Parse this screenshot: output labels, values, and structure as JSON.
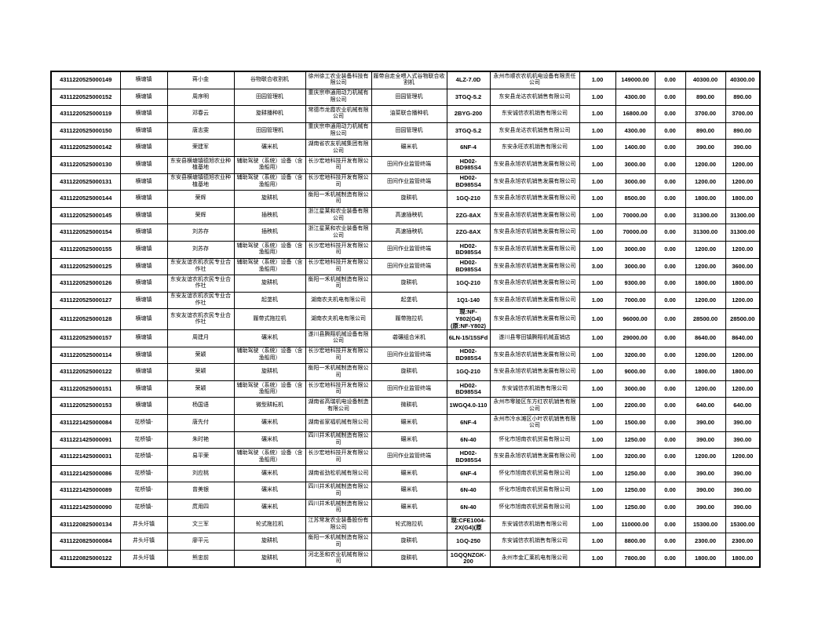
{
  "colors": {
    "page_background": "#ffffff",
    "grid_line": "#000000",
    "text": "#000000"
  },
  "table": {
    "rows": [
      [
        "4311220525000149",
        "横塘镇",
        "蒋小金",
        "谷物联合收割机",
        "徐州徐工农业装备科技有限公司",
        "履带自走全喂入式谷物联合收割机",
        "4LZ-7.0D",
        "永州市顺农农机机电设备有限责任公司",
        "1.00",
        "149000.00",
        "0.00",
        "40300.00",
        "40300.00"
      ],
      [
        "4311220525000152",
        "横塘镇",
        "周序明",
        "田园管理机",
        "重庆宗申通用动力机械有限公司",
        "田园管理机",
        "3TGQ-5.2",
        "东安县龙达农机销售有限公司",
        "1.00",
        "4300.00",
        "0.00",
        "890.00",
        "890.00"
      ],
      [
        "4311220525000119",
        "横塘镇",
        "邓春云",
        "旋耕播种机",
        "常德市龙霞农业机械有限公司",
        "油菜联合播种机",
        "2BYG-200",
        "东安诚信农机销售有限公司",
        "1.00",
        "16800.00",
        "0.00",
        "3700.00",
        "3700.00"
      ],
      [
        "4311220525000150",
        "横塘镇",
        "唐志雯",
        "田园管理机",
        "重庆宗申通用动力机械有限公司",
        "田园管理机",
        "3TGQ-5.2",
        "东安县龙达农机销售有限公司",
        "1.00",
        "4300.00",
        "0.00",
        "890.00",
        "890.00"
      ],
      [
        "4311220525000142",
        "横塘镇",
        "荣建军",
        "碾米机",
        "湖南省农友机械集团有限公司",
        "碾米机",
        "6NF-4",
        "东安永旺农机销售有限公司",
        "1.00",
        "1400.00",
        "0.00",
        "390.00",
        "390.00"
      ],
      [
        "4311220525000130",
        "横塘镇",
        "东安县横塘镇德旭农业种植基地",
        "辅助驾驶（系统）设备（含渔船用）",
        "长沙宏地科技开发有限公司",
        "田间作业监管终端",
        "HD02-BD985S4",
        "东安县永旭农机销售发展有限公司",
        "1.00",
        "3000.00",
        "0.00",
        "1200.00",
        "1200.00"
      ],
      [
        "4311220525000131",
        "横塘镇",
        "东安县横塘镇德旭农业种植基地",
        "辅助驾驶（系统）设备（含渔船用）",
        "长沙宏地科技开发有限公司",
        "田间作业监管终端",
        "HD02-BD985S4",
        "东安县永旭农机销售发展有限公司",
        "1.00",
        "3000.00",
        "0.00",
        "1200.00",
        "1200.00"
      ],
      [
        "4311220525000144",
        "横塘镇",
        "荣辉",
        "旋耕机",
        "衡阳一禾机械制造有限公司",
        "旋耕机",
        "1GQ-210",
        "东安县永旭农机销售发展有限公司",
        "1.00",
        "8500.00",
        "0.00",
        "1800.00",
        "1800.00"
      ],
      [
        "4311220525000145",
        "横塘镇",
        "荣辉",
        "插秧机",
        "浙江星莱和农业装备有限公司",
        "高速插秧机",
        "2ZG-8AX",
        "东安县永旭农机销售发展有限公司",
        "1.00",
        "70000.00",
        "0.00",
        "31300.00",
        "31300.00"
      ],
      [
        "4311220525000154",
        "横塘镇",
        "刘苏存",
        "插秧机",
        "浙江星莱和农业装备有限公司",
        "高速插秧机",
        "2ZG-8AX",
        "东安县永旭农机销售发展有限公司",
        "1.00",
        "70000.00",
        "0.00",
        "31300.00",
        "31300.00"
      ],
      [
        "4311220525000155",
        "横塘镇",
        "刘苏存",
        "辅助驾驶（系统）设备（含渔船用）",
        "长沙宏地科技开发有限公司",
        "田间作业监管终端",
        "HD02-BD985S4",
        "东安县永旭农机销售发展有限公司",
        "1.00",
        "3000.00",
        "0.00",
        "1200.00",
        "1200.00"
      ],
      [
        "4311220525000125",
        "横塘镇",
        "东安友谊农机农民专业合作社",
        "辅助驾驶（系统）设备（含渔船用）",
        "长沙宏地科技开发有限公司",
        "田间作业监管终端",
        "HD02-BD985S4",
        "东安县永旭农机销售发展有限公司",
        "3.00",
        "3000.00",
        "0.00",
        "1200.00",
        "3600.00"
      ],
      [
        "4311220525000126",
        "横塘镇",
        "东安友谊农机农民专业合作社",
        "旋耕机",
        "衡阳一禾机械制造有限公司",
        "旋耕机",
        "1GQ-210",
        "东安县永旭农机销售发展有限公司",
        "1.00",
        "9300.00",
        "0.00",
        "1800.00",
        "1800.00"
      ],
      [
        "4311220525000127",
        "横塘镇",
        "东安友谊农机农民专业合作社",
        "起垄机",
        "湖南农夫机电有限公司",
        "起垄机",
        "1Q1-140",
        "东安县永旭农机销售发展有限公司",
        "1.00",
        "7000.00",
        "0.00",
        "1200.00",
        "1200.00"
      ],
      [
        "4311220525000128",
        "横塘镇",
        "东安友谊农机农民专业合作社",
        "履带式拖拉机",
        "湖南农夫机电有限公司",
        "履带拖拉机",
        "现:NF-Y802(G4)(原:NF-Y802)",
        "东安县永旭农机销售发展有限公司",
        "1.00",
        "96000.00",
        "0.00",
        "28500.00",
        "28500.00"
      ],
      [
        "4311220525000157",
        "横塘镇",
        "周建月",
        "碾米机",
        "遂川县腾翔机械设备有限公司",
        "砻碾组合米机",
        "6LN-15/15SFd",
        "遂川县零田镇腾翔机械直销店",
        "1.00",
        "29000.00",
        "0.00",
        "8640.00",
        "8640.00"
      ],
      [
        "4311220525000114",
        "横塘镇",
        "荣颖",
        "辅助驾驶（系统）设备（含渔船用）",
        "长沙宏地科技开发有限公司",
        "田间作业监管终端",
        "HD02-BD985S4",
        "东安县永旭农机销售发展有限公司",
        "1.00",
        "3200.00",
        "0.00",
        "1200.00",
        "1200.00"
      ],
      [
        "4311220525000122",
        "横塘镇",
        "荣颖",
        "旋耕机",
        "衡阳一禾机械制造有限公司",
        "旋耕机",
        "1GQ-210",
        "东安县永旭农机销售发展有限公司",
        "1.00",
        "9000.00",
        "0.00",
        "1800.00",
        "1800.00"
      ],
      [
        "4311220525000151",
        "横塘镇",
        "荣颖",
        "辅助驾驶（系统）设备（含渔船用）",
        "长沙宏地科技开发有限公司",
        "田间作业监管终端",
        "HD02-BD985S4",
        "东安诚信农机销售有限公司",
        "1.00",
        "3000.00",
        "0.00",
        "1200.00",
        "1200.00"
      ],
      [
        "4311220525000153",
        "横塘镇",
        "杨国语",
        "微型耕耘机",
        "湖南省高瑞机电设备制造有限公司",
        "微耕机",
        "1WGQ4.0-110",
        "永州市零陵区东方红农机销售有限公司",
        "1.00",
        "2200.00",
        "0.00",
        "640.00",
        "640.00"
      ],
      [
        "4311221425000084",
        "花桥镇-",
        "唐先付",
        "碾米机",
        "湖南省家福机械有限公司",
        "碾米机",
        "6NF-4",
        "永州市冷水滩区小叶农机销售有限公司",
        "1.00",
        "1500.00",
        "0.00",
        "390.00",
        "390.00"
      ],
      [
        "4311221425000091",
        "花桥镇-",
        "朱时艳",
        "碾米机",
        "四川井禾机械制造有限公司",
        "碾米机",
        "6N-40",
        "怀化市旭南农机贸易有限公司",
        "1.00",
        "1250.00",
        "0.00",
        "390.00",
        "390.00"
      ],
      [
        "4311221425000031",
        "花桥镇-",
        "易平荣",
        "辅助驾驶（系统）设备（含渔船用）",
        "长沙宏地科技开发有限公司",
        "田间作业监管终端",
        "HD02-BD985S4",
        "东安县永旭农机销售发展有限公司",
        "1.00",
        "3200.00",
        "0.00",
        "1200.00",
        "1200.00"
      ],
      [
        "4311221425000086",
        "花桥镇-",
        "刘应桃",
        "碾米机",
        "湖南省劲松机械有限公司",
        "碾米机",
        "6NF-4",
        "怀化市旭南农机贸易有限公司",
        "1.00",
        "1250.00",
        "0.00",
        "390.00",
        "390.00"
      ],
      [
        "4311221425000089",
        "花桥镇-",
        "曾美银",
        "碾米机",
        "四川井禾机械制造有限公司",
        "碾米机",
        "6N-40",
        "怀化市旭南农机贸易有限公司",
        "1.00",
        "1250.00",
        "0.00",
        "390.00",
        "390.00"
      ],
      [
        "4311221425000090",
        "花桥镇-",
        "庹用四",
        "碾米机",
        "四川井禾机械制造有限公司",
        "碾米机",
        "6N-40",
        "怀化市旭南农机贸易有限公司",
        "1.00",
        "1250.00",
        "0.00",
        "390.00",
        "390.00"
      ],
      [
        "4311220825000134",
        "井头圩镇",
        "文三军",
        "轮式拖拉机",
        "江苏常发农业装备股份有限公司",
        "轮式拖拉机",
        "现:CFE1004-2X(G4)(原",
        "东安诚信农机销售有限公司",
        "1.00",
        "110000.00",
        "0.00",
        "15300.00",
        "15300.00"
      ],
      [
        "4311220825000084",
        "井头圩镇",
        "廖平元",
        "旋耕机",
        "衡阳一禾机械制造有限公司",
        "旋耕机",
        "1GQ-250",
        "东安诚信农机销售有限公司",
        "1.00",
        "8800.00",
        "0.00",
        "2300.00",
        "2300.00"
      ],
      [
        "4311220825000122",
        "井头圩镇",
        "熊忠前",
        "旋耕机",
        "河北圣和农业机械有限公司",
        "旋耕机",
        "1GQQNZGK-200",
        "永州市金汇莱机电有限公司",
        "1.00",
        "7800.00",
        "0.00",
        "1800.00",
        "1800.00"
      ]
    ]
  }
}
